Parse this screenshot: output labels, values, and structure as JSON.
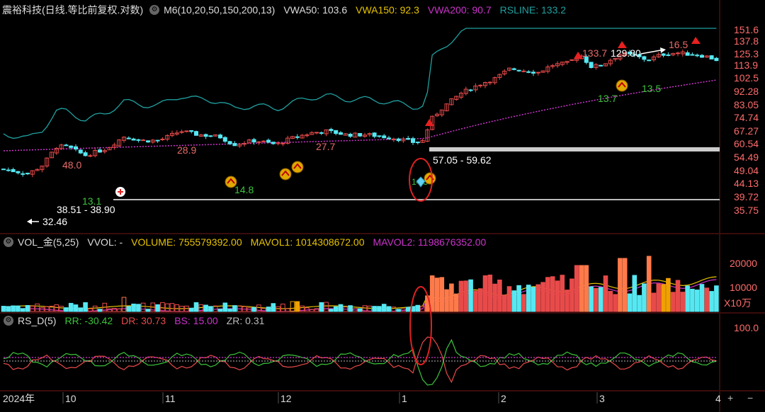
{
  "colors": {
    "up": "#e84a4a",
    "down": "#56e8f2",
    "rsline": "#20a0a0",
    "vwa150": "#e8c400",
    "vwa200": "#cc33cc",
    "white": "#e0e0e0",
    "green": "#3cc43c"
  },
  "header": {
    "title": "震裕科技(日线.等比前复权.对数)",
    "ma": "M6(10,20,50,150,200,13)",
    "vwa50": "VWA50: 103.6",
    "vwa150": "VWA150: 92.3",
    "vwa200": "VWA200: 90.7",
    "rsline": "RSLINE: 133.2"
  },
  "vol_header": {
    "name": "VOL_金(5,25)",
    "vvol": "VVOL: -",
    "volume": "VOLUME: 755579392.00",
    "mavol1": "MAVOL1: 1014308672.00",
    "mavol2": "MAVOL2: 1198676352.00"
  },
  "rs_header": {
    "name": "RS_D(5)",
    "rr": "RR: -30.42",
    "dr": "DR: 30.73",
    "bs": "BS: 15.00",
    "zr": "ZR: 0.31"
  },
  "price_axis": [
    "151.6",
    "137.8",
    "125.3",
    "113.9",
    "102.5",
    "92.28",
    "83.05",
    "74.74",
    "67.27",
    "60.54",
    "54.49",
    "49.04",
    "44.13",
    "39.72",
    "35.75"
  ],
  "vol_axis": [
    "20000",
    "10000",
    "X10万"
  ],
  "rs_axis": [
    "100.0"
  ],
  "date_axis": [
    "2024年",
    "10",
    "11",
    "12",
    "1",
    "2",
    "3",
    "4"
  ],
  "annotations": {
    "a1": "32.46",
    "a2": "48.0",
    "a3": "38.51 - 38.90",
    "a4": "13.1",
    "a5": "28.9",
    "a6": "14.8",
    "a7": "27.7",
    "a8": "57.05 - 59.62",
    "a9": "14.5",
    "a10": "133.7",
    "a11": "13.7",
    "a12": "129.80",
    "a13": "16.5",
    "a14": "13.5"
  },
  "footer": {
    "plus": "+",
    "minus": "−"
  },
  "chart_data": {
    "type": "candlestick",
    "title": "震裕科技(日线.等比前复权.对数)",
    "yscale": "log",
    "ylim": [
      34,
      165
    ],
    "n_days": 150,
    "date_marks": [
      "2024年",
      "10",
      "11",
      "12",
      "1",
      "2",
      "3",
      "4"
    ],
    "highs_labeled": [
      48.0,
      28.9,
      27.7,
      133.7,
      129.8
    ],
    "ranges_labeled": [
      "38.51 - 38.90",
      "57.05 - 59.62"
    ]
  }
}
